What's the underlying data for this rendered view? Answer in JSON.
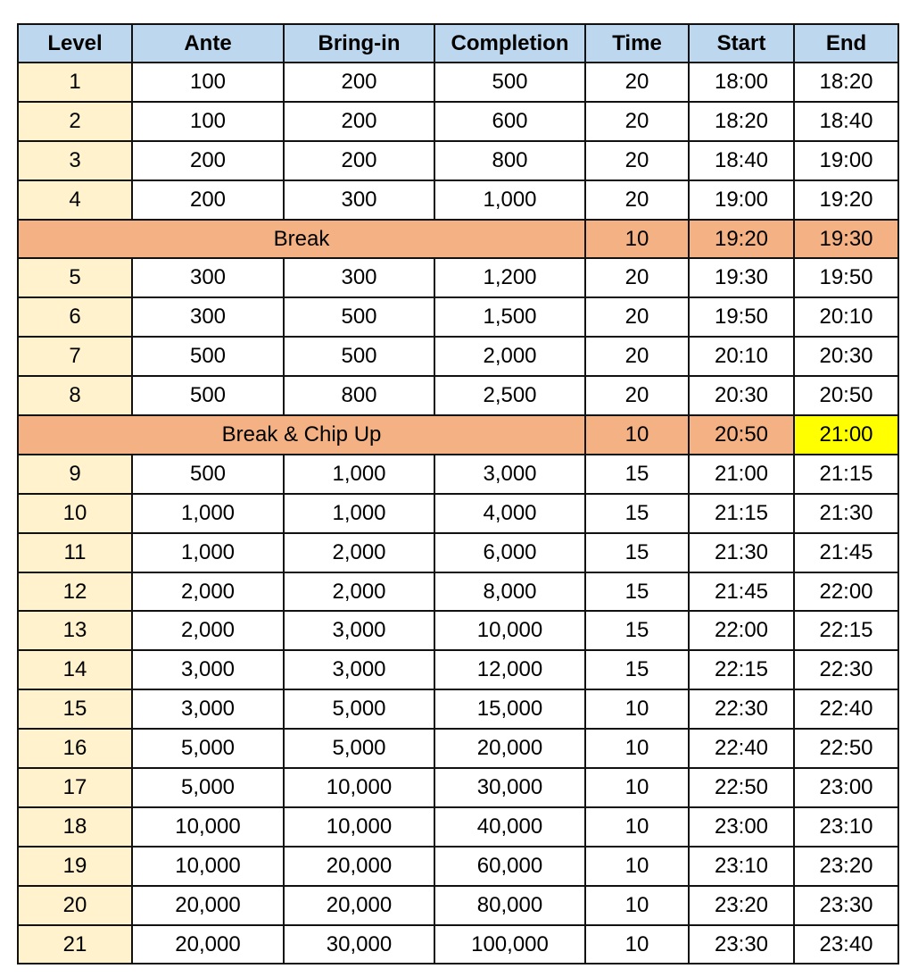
{
  "colors": {
    "header": "#bdd7ee",
    "level_column": "#fff2cc",
    "break_row": "#f4b183",
    "highlight": "#ffff00"
  },
  "columns": [
    "Level",
    "Ante",
    "Bring-in",
    "Completion",
    "Time",
    "Start",
    "End"
  ],
  "rows": [
    {
      "cells": [
        "1",
        "100",
        "200",
        "500",
        "20",
        "18:00",
        "18:20"
      ]
    },
    {
      "cells": [
        "2",
        "100",
        "200",
        "600",
        "20",
        "18:20",
        "18:40"
      ]
    },
    {
      "cells": [
        "3",
        "200",
        "200",
        "800",
        "20",
        "18:40",
        "19:00"
      ]
    },
    {
      "cells": [
        "4",
        "200",
        "300",
        "1,000",
        "20",
        "19:00",
        "19:20"
      ]
    },
    {
      "break": true,
      "label": "Break",
      "cells": [
        "10",
        "19:20",
        "19:30"
      ]
    },
    {
      "cells": [
        "5",
        "300",
        "300",
        "1,200",
        "20",
        "19:30",
        "19:50"
      ]
    },
    {
      "cells": [
        "6",
        "300",
        "500",
        "1,500",
        "20",
        "19:50",
        "20:10"
      ]
    },
    {
      "cells": [
        "7",
        "500",
        "500",
        "2,000",
        "20",
        "20:10",
        "20:30"
      ]
    },
    {
      "cells": [
        "8",
        "500",
        "800",
        "2,500",
        "20",
        "20:30",
        "20:50"
      ]
    },
    {
      "break": true,
      "label": "Break & Chip Up",
      "cells": [
        "10",
        "20:50",
        "21:00"
      ],
      "highlight_end": true
    },
    {
      "cells": [
        "9",
        "500",
        "1,000",
        "3,000",
        "15",
        "21:00",
        "21:15"
      ]
    },
    {
      "cells": [
        "10",
        "1,000",
        "1,000",
        "4,000",
        "15",
        "21:15",
        "21:30"
      ]
    },
    {
      "cells": [
        "11",
        "1,000",
        "2,000",
        "6,000",
        "15",
        "21:30",
        "21:45"
      ]
    },
    {
      "cells": [
        "12",
        "2,000",
        "2,000",
        "8,000",
        "15",
        "21:45",
        "22:00"
      ]
    },
    {
      "cells": [
        "13",
        "2,000",
        "3,000",
        "10,000",
        "15",
        "22:00",
        "22:15"
      ]
    },
    {
      "cells": [
        "14",
        "3,000",
        "3,000",
        "12,000",
        "15",
        "22:15",
        "22:30"
      ]
    },
    {
      "cells": [
        "15",
        "3,000",
        "5,000",
        "15,000",
        "10",
        "22:30",
        "22:40"
      ]
    },
    {
      "cells": [
        "16",
        "5,000",
        "5,000",
        "20,000",
        "10",
        "22:40",
        "22:50"
      ]
    },
    {
      "cells": [
        "17",
        "5,000",
        "10,000",
        "30,000",
        "10",
        "22:50",
        "23:00"
      ]
    },
    {
      "cells": [
        "18",
        "10,000",
        "10,000",
        "40,000",
        "10",
        "23:00",
        "23:10"
      ]
    },
    {
      "cells": [
        "19",
        "10,000",
        "20,000",
        "60,000",
        "10",
        "23:10",
        "23:20"
      ]
    },
    {
      "cells": [
        "20",
        "20,000",
        "20,000",
        "80,000",
        "10",
        "23:20",
        "23:30"
      ]
    },
    {
      "cells": [
        "21",
        "20,000",
        "30,000",
        "100,000",
        "10",
        "23:30",
        "23:40"
      ]
    }
  ]
}
